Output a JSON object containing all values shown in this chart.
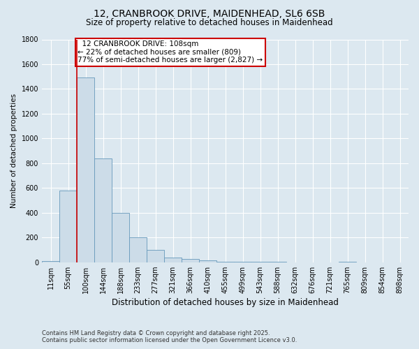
{
  "title_line1": "12, CRANBROOK DRIVE, MAIDENHEAD, SL6 6SB",
  "title_line2": "Size of property relative to detached houses in Maidenhead",
  "xlabel": "Distribution of detached houses by size in Maidenhead",
  "ylabel": "Number of detached properties",
  "footnote_line1": "Contains HM Land Registry data © Crown copyright and database right 2025.",
  "footnote_line2": "Contains public sector information licensed under the Open Government Licence v3.0.",
  "annotation_line1": "  12 CRANBROOK DRIVE: 108sqm",
  "annotation_line2": "← 22% of detached houses are smaller (809)",
  "annotation_line3": "77% of semi-detached houses are larger (2,827) →",
  "bar_labels": [
    "11sqm",
    "55sqm",
    "100sqm",
    "144sqm",
    "188sqm",
    "233sqm",
    "277sqm",
    "321sqm",
    "366sqm",
    "410sqm",
    "455sqm",
    "499sqm",
    "543sqm",
    "588sqm",
    "632sqm",
    "676sqm",
    "721sqm",
    "765sqm",
    "809sqm",
    "854sqm",
    "898sqm"
  ],
  "bar_values": [
    10,
    580,
    1490,
    840,
    400,
    200,
    100,
    35,
    25,
    15,
    5,
    5,
    3,
    2,
    1,
    0,
    0,
    5,
    0,
    0,
    0
  ],
  "bar_color": "#ccdce8",
  "bar_edge_color": "#6699bb",
  "red_line_x": 2.0,
  "ylim": [
    0,
    1800
  ],
  "yticks": [
    0,
    200,
    400,
    600,
    800,
    1000,
    1200,
    1400,
    1600,
    1800
  ],
  "bg_color": "#dce8f0",
  "plot_bg_color": "#dce8f0",
  "grid_color": "#ffffff",
  "annotation_box_color": "#ffffff",
  "annotation_box_edge": "#cc0000",
  "red_line_color": "#cc0000",
  "title_fontsize": 10,
  "subtitle_fontsize": 8.5,
  "xlabel_fontsize": 8.5,
  "ylabel_fontsize": 7.5,
  "tick_fontsize": 7,
  "footnote_fontsize": 6,
  "annotation_fontsize": 7.5
}
